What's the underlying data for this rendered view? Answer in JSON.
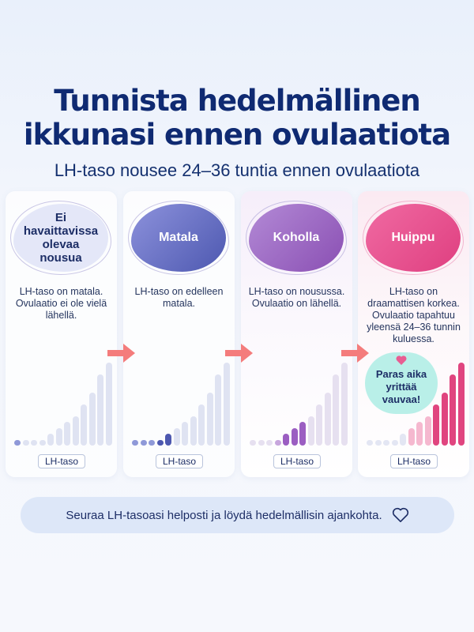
{
  "title": {
    "line1": "Tunnista hedelmällinen",
    "line2": "ikkunasi ennen ovulaatiota"
  },
  "subtitle": "LH-taso nousee 24–36 tuntia ennen ovulaatiota",
  "stages": [
    {
      "name": "Ei havaittavissa olevaa nousua",
      "description": "LH-taso on matala. Ovulaatio ei ole vielä lähellä.",
      "badge": "LH-taso"
    },
    {
      "name": "Matala",
      "description": "LH-taso on edelleen matala.",
      "badge": "LH-taso"
    },
    {
      "name": "Koholla",
      "description": "LH-taso on nousussa. Ovulaatio on lähellä.",
      "badge": "LH-taso"
    },
    {
      "name": "Huippu",
      "description": "LH-taso on draamattisen korkea. Ovulaatio tapahtuu yleensä 24–36 tunnin kuluessa.",
      "badge": "LH-taso"
    }
  ],
  "callout": "Paras aika yrittää vauvaa!",
  "footer": "Seuraa LH-tasoasi helposti ja löydä hedelmällisin ajankohta.",
  "chart_data": [
    {
      "type": "bar",
      "values": [
        1,
        1,
        1,
        1,
        2,
        3,
        4,
        5,
        7,
        9,
        12,
        14
      ],
      "highlight_count": 1,
      "highlight_color": "#8f99d8",
      "base_color": "#dfe3f2"
    },
    {
      "type": "bar",
      "values": [
        1,
        1,
        1,
        1,
        2,
        3,
        4,
        5,
        7,
        9,
        12,
        14
      ],
      "highlight_count": 5,
      "highlight_color": "#4d58b0",
      "base_color": "#dfe3f2"
    },
    {
      "type": "bar",
      "values": [
        1,
        1,
        1,
        1,
        2,
        3,
        4,
        5,
        7,
        9,
        12,
        14
      ],
      "highlight_count": 7,
      "highlight_color": "#9b5ec2",
      "base_color": "#e6e0f0"
    },
    {
      "type": "bar",
      "values": [
        1,
        1,
        1,
        1,
        2,
        3,
        4,
        5,
        7,
        9,
        12,
        14
      ],
      "highlight_count": 12,
      "highlight_color": "#e0457f",
      "base_color": "#e6e0f0"
    }
  ],
  "colors": {
    "title": "#0f2a72",
    "arrow": "#f47c7c",
    "bubble": "#b9efe8",
    "heart": "#e85d92"
  }
}
